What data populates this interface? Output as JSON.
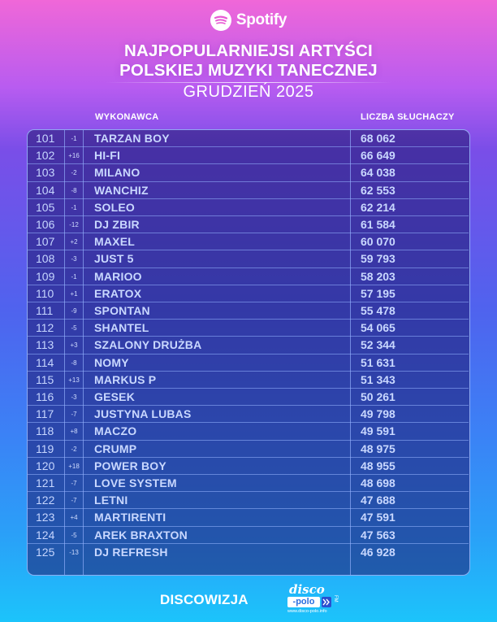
{
  "header": {
    "brand": "Spotify",
    "title_line1": "NAJPOPULARNIEJSI ARTYŚCI",
    "title_line2": "POLSKIEJ MUZYKI TANECZNEJ",
    "subtitle": "GRUDZIEŃ 2025"
  },
  "columns": {
    "artist": "WYKONAWCA",
    "listeners": "LICZBA SŁUCHACZY"
  },
  "rows": [
    {
      "rank": "101",
      "change": "-1",
      "artist": "TARZAN BOY",
      "listeners": "68 062"
    },
    {
      "rank": "102",
      "change": "+16",
      "artist": "HI-FI",
      "listeners": "66 649"
    },
    {
      "rank": "103",
      "change": "-2",
      "artist": "MILANO",
      "listeners": "64 038"
    },
    {
      "rank": "104",
      "change": "-8",
      "artist": "WANCHIZ",
      "listeners": "62 553"
    },
    {
      "rank": "105",
      "change": "-1",
      "artist": "SOLEO",
      "listeners": "62 214"
    },
    {
      "rank": "106",
      "change": "-12",
      "artist": "DJ ZBIR",
      "listeners": "61 584"
    },
    {
      "rank": "107",
      "change": "+2",
      "artist": "MAXEL",
      "listeners": "60 070"
    },
    {
      "rank": "108",
      "change": "-3",
      "artist": "JUST 5",
      "listeners": "59 793"
    },
    {
      "rank": "109",
      "change": "-1",
      "artist": "MARIOO",
      "listeners": "58 203"
    },
    {
      "rank": "110",
      "change": "+1",
      "artist": "ERATOX",
      "listeners": "57 195"
    },
    {
      "rank": "111",
      "change": "-9",
      "artist": "SPONTAN",
      "listeners": "55 478"
    },
    {
      "rank": "112",
      "change": "-5",
      "artist": "SHANTEL",
      "listeners": "54 065"
    },
    {
      "rank": "113",
      "change": "+3",
      "artist": "SZALONY DRUŻBA",
      "listeners": "52 344"
    },
    {
      "rank": "114",
      "change": "-8",
      "artist": "NOMY",
      "listeners": "51 631"
    },
    {
      "rank": "115",
      "change": "+13",
      "artist": "MARKUS P",
      "listeners": "51 343"
    },
    {
      "rank": "116",
      "change": "-3",
      "artist": "GESEK",
      "listeners": "50 261"
    },
    {
      "rank": "117",
      "change": "-7",
      "artist": "JUSTYNA LUBAS",
      "listeners": "49 798"
    },
    {
      "rank": "118",
      "change": "+8",
      "artist": "MACZO",
      "listeners": "49 591"
    },
    {
      "rank": "119",
      "change": "-2",
      "artist": "CRUMP",
      "listeners": "48 975"
    },
    {
      "rank": "120",
      "change": "+18",
      "artist": "POWER BOY",
      "listeners": "48 955"
    },
    {
      "rank": "121",
      "change": "-7",
      "artist": "LOVE SYSTEM",
      "listeners": "48 698"
    },
    {
      "rank": "122",
      "change": "-7",
      "artist": "LETNI",
      "listeners": "47 688"
    },
    {
      "rank": "123",
      "change": "+4",
      "artist": "MARTIRENTI",
      "listeners": "47 591"
    },
    {
      "rank": "124",
      "change": "-5",
      "artist": "AREK BRAXTON",
      "listeners": "47 563"
    },
    {
      "rank": "125",
      "change": "-13",
      "artist": "DJ REFRESH",
      "listeners": "46 928"
    }
  ],
  "footer": {
    "left_brand": "DISCOWIZJA",
    "logo_top": "disco",
    "logo_box": "-polo",
    "logo_fm": "FM",
    "logo_url": "www.disco-polo.info"
  },
  "colors": {
    "text_primary": "#ffffff",
    "table_text": "#c9d8ff",
    "table_border": "#a0beff"
  },
  "icons": {
    "spotify_logo": "spotify-icon"
  }
}
